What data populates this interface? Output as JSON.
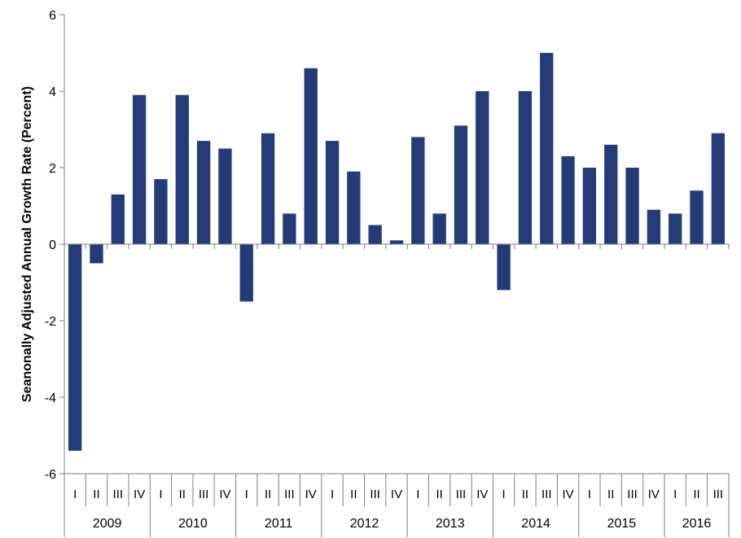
{
  "chart_data": {
    "type": "bar",
    "title": "",
    "xlabel": "",
    "ylabel": "Seanonally Adjusted Annual Growth Rate (Percent)",
    "ylim": [
      -6,
      6
    ],
    "yticks": [
      -6,
      -4,
      -2,
      0,
      2,
      4,
      6
    ],
    "bar_color": "#233c78",
    "grid": false,
    "categories": [
      {
        "quarter": "I",
        "year": "2009"
      },
      {
        "quarter": "II",
        "year": "2009"
      },
      {
        "quarter": "III",
        "year": "2009"
      },
      {
        "quarter": "IV",
        "year": "2009"
      },
      {
        "quarter": "I",
        "year": "2010"
      },
      {
        "quarter": "II",
        "year": "2010"
      },
      {
        "quarter": "III",
        "year": "2010"
      },
      {
        "quarter": "IV",
        "year": "2010"
      },
      {
        "quarter": "I",
        "year": "2011"
      },
      {
        "quarter": "II",
        "year": "2011"
      },
      {
        "quarter": "III",
        "year": "2011"
      },
      {
        "quarter": "IV",
        "year": "2011"
      },
      {
        "quarter": "I",
        "year": "2012"
      },
      {
        "quarter": "II",
        "year": "2012"
      },
      {
        "quarter": "III",
        "year": "2012"
      },
      {
        "quarter": "IV",
        "year": "2012"
      },
      {
        "quarter": "I",
        "year": "2013"
      },
      {
        "quarter": "II",
        "year": "2013"
      },
      {
        "quarter": "III",
        "year": "2013"
      },
      {
        "quarter": "IV",
        "year": "2013"
      },
      {
        "quarter": "I",
        "year": "2014"
      },
      {
        "quarter": "II",
        "year": "2014"
      },
      {
        "quarter": "III",
        "year": "2014"
      },
      {
        "quarter": "IV",
        "year": "2014"
      },
      {
        "quarter": "I",
        "year": "2015"
      },
      {
        "quarter": "II",
        "year": "2015"
      },
      {
        "quarter": "III",
        "year": "2015"
      },
      {
        "quarter": "IV",
        "year": "2015"
      },
      {
        "quarter": "I",
        "year": "2016"
      },
      {
        "quarter": "II",
        "year": "2016"
      },
      {
        "quarter": "III",
        "year": "2016"
      }
    ],
    "years": [
      "2009",
      "2010",
      "2011",
      "2012",
      "2013",
      "2014",
      "2015",
      "2016"
    ],
    "values": [
      -5.4,
      -0.5,
      1.3,
      3.9,
      1.7,
      3.9,
      2.7,
      2.5,
      -1.5,
      2.9,
      0.8,
      4.6,
      2.7,
      1.9,
      0.5,
      0.1,
      2.8,
      0.8,
      3.1,
      4.0,
      -1.2,
      4.0,
      5.0,
      2.3,
      2.0,
      2.6,
      2.0,
      0.9,
      0.8,
      1.4,
      2.9
    ]
  }
}
